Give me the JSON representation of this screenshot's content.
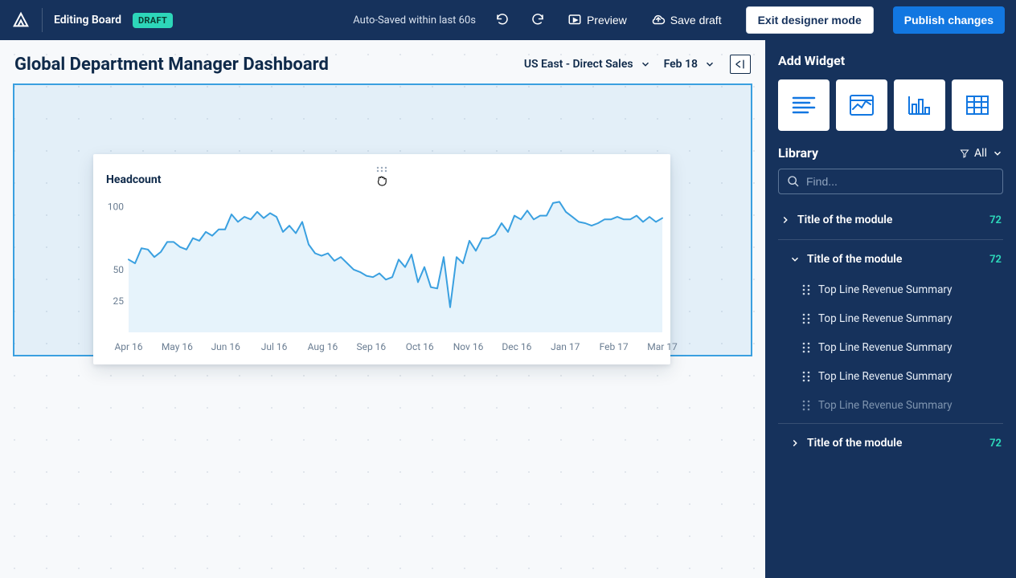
{
  "header": {
    "board_title": "Editing Board",
    "draft_label": "DRAFT",
    "autosave": "Auto-Saved within last 60s",
    "preview_label": "Preview",
    "save_draft_label": "Save draft",
    "exit_label": "Exit designer mode",
    "publish_label": "Publish changes",
    "brand_color": "#16325c",
    "primary_button_color": "#1277e1",
    "draft_badge_color": "#2dd6b9"
  },
  "canvas": {
    "page_title": "Global Department Manager Dashboard",
    "filter_region": "US East - Direct Sales",
    "filter_date": "Feb 18",
    "dropzone_border_color": "#3aa0e0",
    "dropzone_fill_color": "rgba(58,160,224,0.10)",
    "grid_dot_color": "#d7dde5",
    "background_color": "#f7f9fb"
  },
  "chart": {
    "type": "area",
    "title": "Headcount",
    "x_labels": [
      "Apr 16",
      "May 16",
      "Jun 16",
      "Jul 16",
      "Aug 16",
      "Sep 16",
      "Oct 16",
      "Nov 16",
      "Dec 16",
      "Jan 17",
      "Feb 17",
      "Mar 17"
    ],
    "y_ticks": [
      25,
      50,
      100
    ],
    "y_range": [
      0,
      110
    ],
    "values": [
      58,
      55,
      67,
      66,
      60,
      64,
      72,
      72,
      68,
      66,
      75,
      73,
      80,
      77,
      82,
      82,
      94,
      88,
      92,
      90,
      96,
      91,
      95,
      92,
      80,
      85,
      79,
      88,
      70,
      63,
      61,
      63,
      57,
      60,
      55,
      50,
      48,
      45,
      44,
      47,
      42,
      44,
      58,
      52,
      62,
      40,
      52,
      36,
      35,
      60,
      20,
      60,
      55,
      73,
      65,
      75,
      75,
      78,
      87,
      80,
      93,
      90,
      97,
      90,
      93,
      93,
      103,
      104,
      96,
      92,
      88,
      87,
      85,
      87,
      90,
      90,
      92,
      90,
      90,
      93,
      88,
      92,
      88,
      91
    ],
    "line_color": "#3aa0e0",
    "fill_color": "#e6f3fb",
    "line_width": 2,
    "axis_label_color": "#6a7d92",
    "axis_label_fontsize": 12,
    "title_fontsize": 14,
    "background_color": "#ffffff",
    "card_shadow": "0 8px 22px rgba(16,42,67,.12), 0 2px 6px rgba(16,42,67,.10)"
  },
  "sidebar": {
    "add_widget_title": "Add Widget",
    "library_title": "Library",
    "filter_label": "All",
    "search_placeholder": "Find...",
    "modules": [
      {
        "label": "Title of the module",
        "count": "72",
        "expanded": false
      },
      {
        "label": "Title of the module",
        "count": "72",
        "expanded": true
      },
      {
        "label": "Title of the module",
        "count": "72",
        "expanded": false
      }
    ],
    "items": [
      {
        "label": "Top Line Revenue Summary",
        "disabled": false
      },
      {
        "label": "Top Line Revenue Summary",
        "disabled": false
      },
      {
        "label": "Top Line Revenue Summary",
        "disabled": false
      },
      {
        "label": "Top Line Revenue Summary",
        "disabled": false
      },
      {
        "label": "Top Line Revenue Summary",
        "disabled": true
      }
    ],
    "count_color": "#2dd6b9",
    "background_color": "#16325c"
  }
}
